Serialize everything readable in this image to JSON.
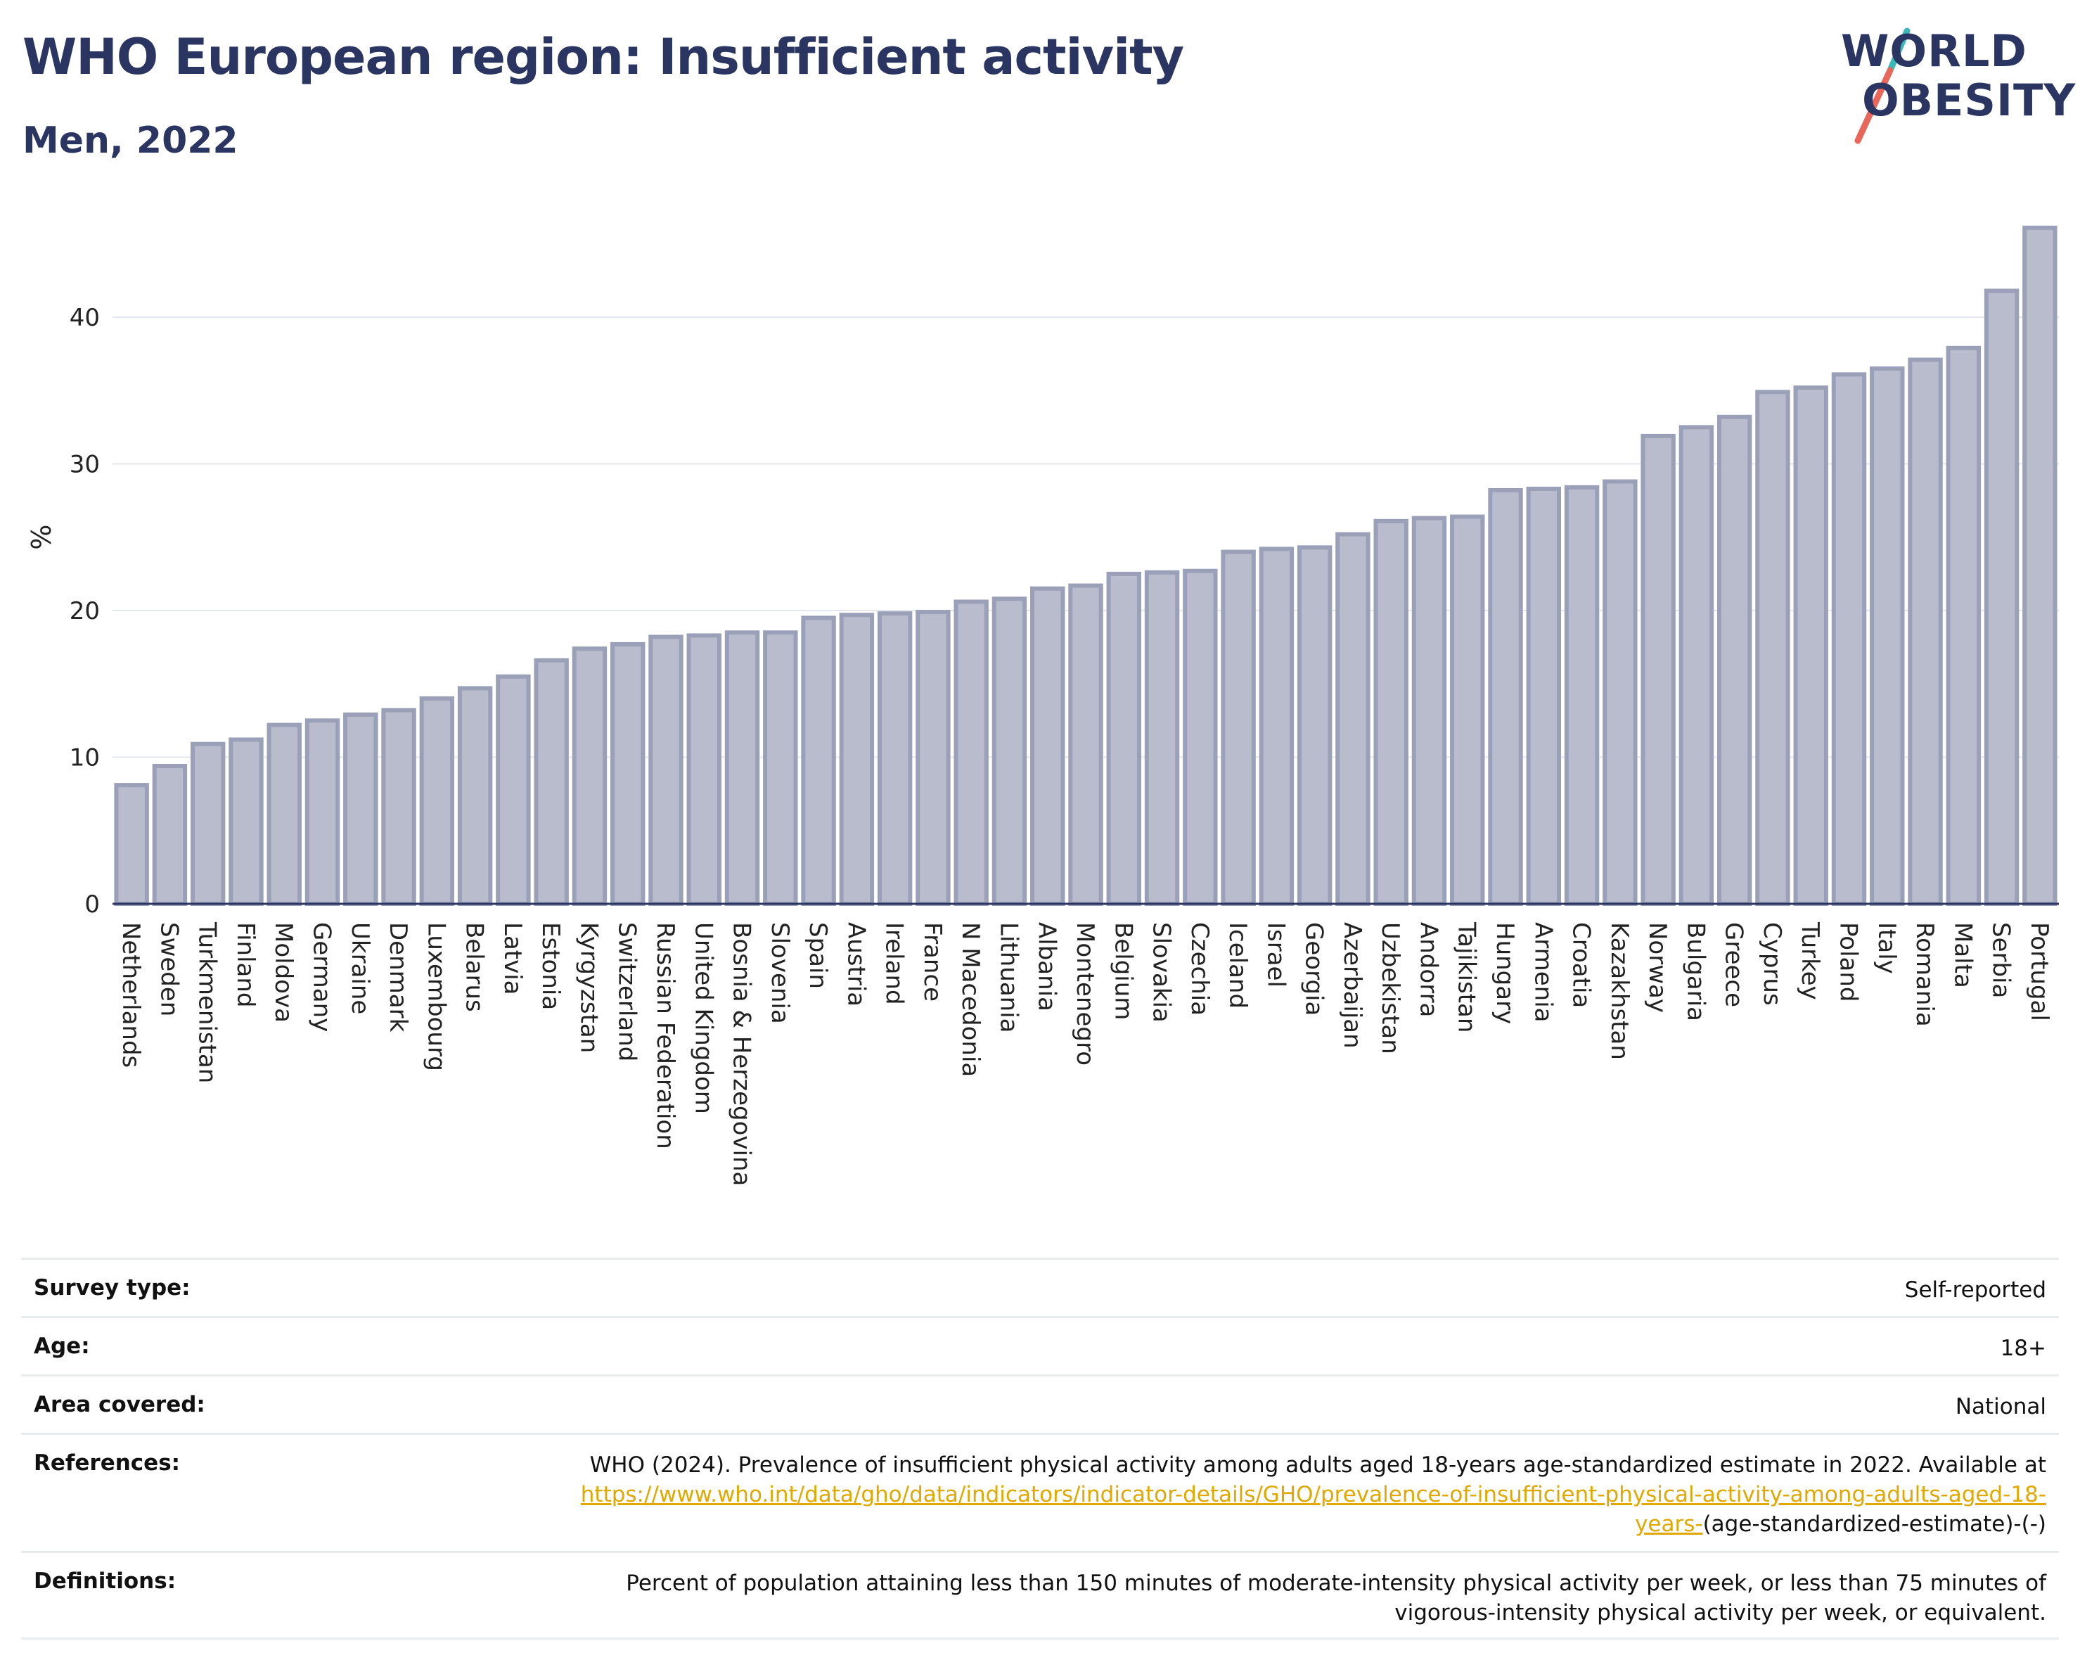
{
  "header": {
    "title": "WHO European region: Insufficient activity",
    "subtitle": "Men, 2022"
  },
  "logo": {
    "line1": "WORLD",
    "line2": "OBESITY",
    "colors": {
      "text": "#2b3561",
      "slash_top": "#3ab8b8",
      "slash_bottom": "#e8675a"
    }
  },
  "chart_data": {
    "type": "bar",
    "title": "WHO European region: Insufficient activity",
    "subtitle": "Men, 2022",
    "xlabel": "",
    "ylabel": "%",
    "ylim": [
      0,
      48
    ],
    "yticks": [
      0,
      10,
      20,
      30,
      40
    ],
    "grid": true,
    "bar_color": "#b8bccd",
    "bar_edge_color": "#9aa0b8",
    "categories": [
      "Netherlands",
      "Sweden",
      "Turkmenistan",
      "Finland",
      "Moldova",
      "Germany",
      "Ukraine",
      "Denmark",
      "Luxembourg",
      "Belarus",
      "Latvia",
      "Estonia",
      "Kyrgyzstan",
      "Switzerland",
      "Russian Federation",
      "United Kingdom",
      "Bosnia & Herzegovina",
      "Slovenia",
      "Spain",
      "Austria",
      "Ireland",
      "France",
      "N Macedonia",
      "Lithuania",
      "Albania",
      "Montenegro",
      "Belgium",
      "Slovakia",
      "Czechia",
      "Iceland",
      "Israel",
      "Georgia",
      "Azerbaijan",
      "Uzbekistan",
      "Andorra",
      "Tajikistan",
      "Hungary",
      "Armenia",
      "Croatia",
      "Kazakhstan",
      "Norway",
      "Bulgaria",
      "Greece",
      "Cyprus",
      "Turkey",
      "Poland",
      "Italy",
      "Romania",
      "Malta",
      "Serbia",
      "Portugal"
    ],
    "values": [
      8.1,
      9.4,
      10.9,
      11.2,
      12.2,
      12.5,
      12.9,
      13.2,
      14.0,
      14.7,
      15.5,
      16.6,
      17.4,
      17.7,
      18.2,
      18.3,
      18.5,
      18.5,
      19.5,
      19.7,
      19.8,
      19.9,
      20.6,
      20.8,
      21.5,
      21.7,
      22.5,
      22.6,
      22.7,
      24.0,
      24.2,
      24.3,
      25.2,
      26.1,
      26.3,
      26.4,
      28.2,
      28.3,
      28.4,
      28.8,
      31.9,
      32.5,
      33.2,
      34.9,
      35.2,
      36.1,
      36.5,
      37.1,
      37.9,
      41.8,
      46.1
    ]
  },
  "info": {
    "survey_type": {
      "label": "Survey type:",
      "value": "Self-reported"
    },
    "age": {
      "label": "Age:",
      "value": "18+"
    },
    "area": {
      "label": "Area covered:",
      "value": "National"
    },
    "references": {
      "label": "References:",
      "text": "WHO (2024). Prevalence of insufficient physical activity among adults aged 18-years age-standardized estimate in 2022. Available at",
      "link": "https://www.who.int/data/gho/data/indicators/indicator-details/GHO/prevalence-of-insufficient-physical-activity-among-adults-aged-18-years-",
      "suffix": "(age-standardized-estimate)-(-)"
    },
    "definitions": {
      "label": "Definitions:",
      "value": "Percent of population attaining less than 150 minutes of moderate-intensity physical activity per week, or less than 75 minutes of vigorous-intensity physical activity per week, or equivalent."
    }
  }
}
